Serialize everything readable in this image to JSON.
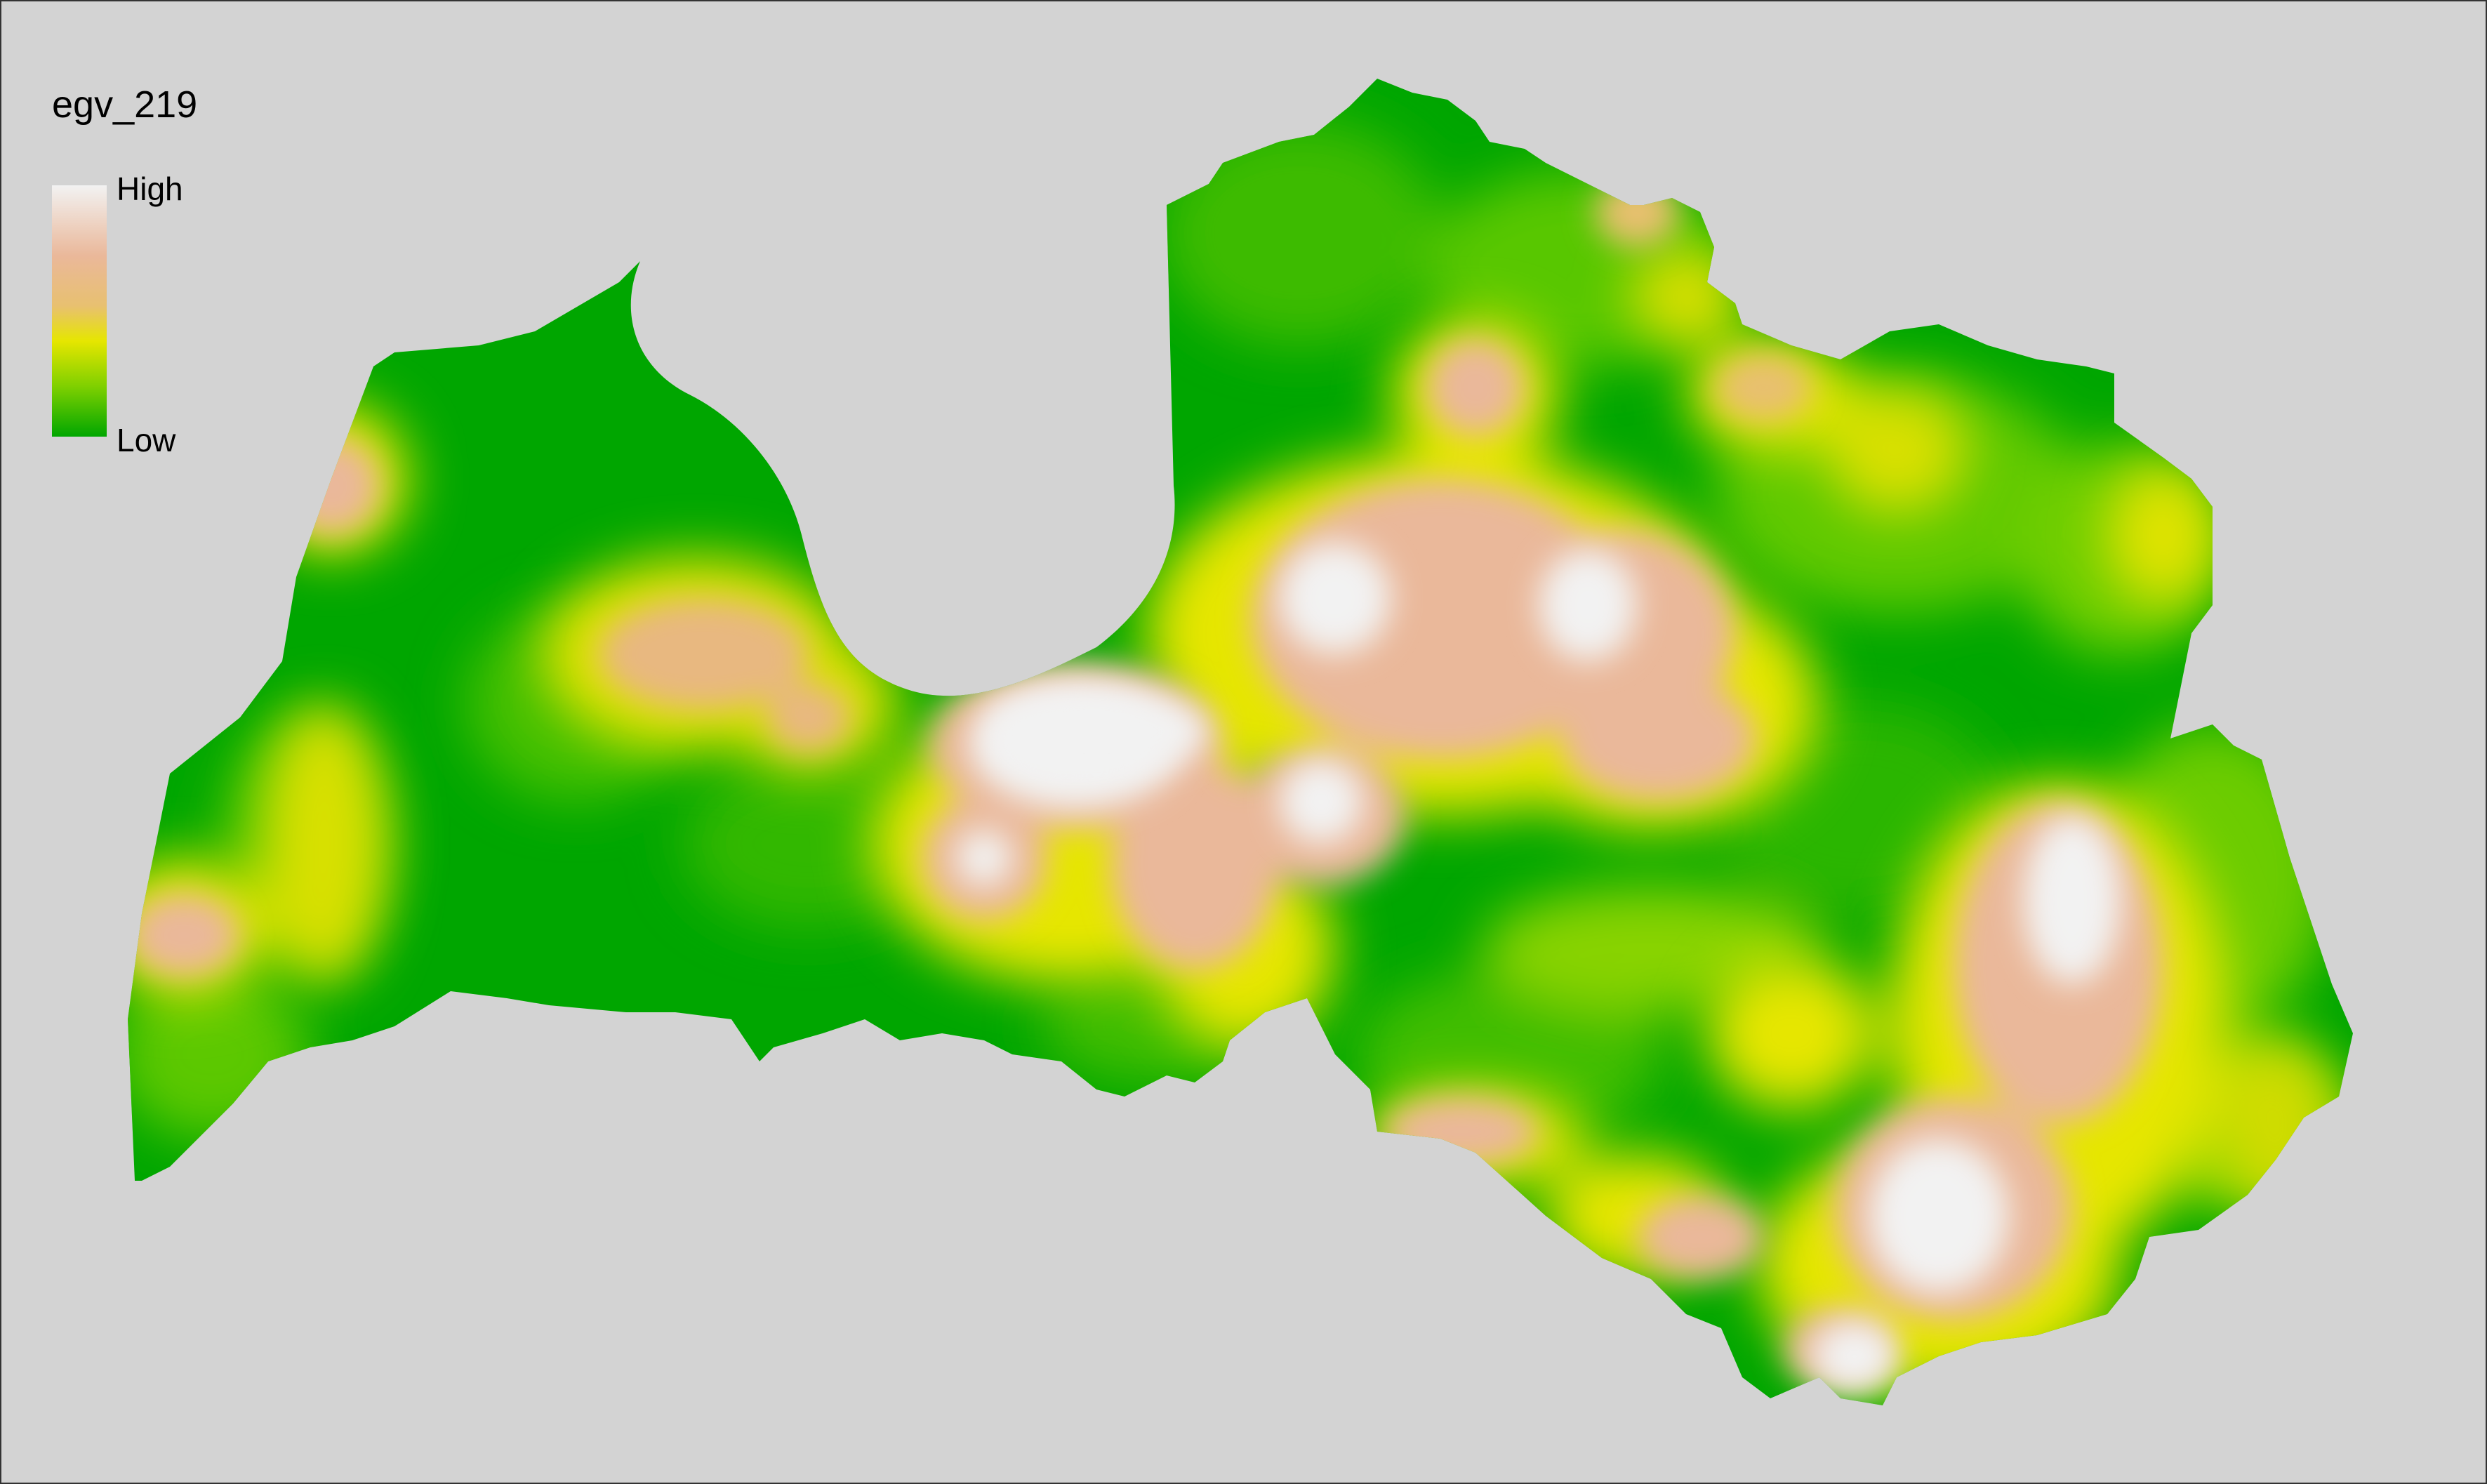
{
  "legend": {
    "title": "egv_219",
    "high_label": "High",
    "low_label": "Low",
    "gradient_colors": [
      "#f2f2f2",
      "#eab89a",
      "#e8c070",
      "#e6e600",
      "#7fd000",
      "#00a600"
    ]
  },
  "colors": {
    "background": "#d3d3d3",
    "frame_border": "#333333",
    "land_low": "#00a600",
    "land_mid": "#e6e600",
    "land_high": "#eab89a",
    "land_peak": "#f2f2f2"
  }
}
